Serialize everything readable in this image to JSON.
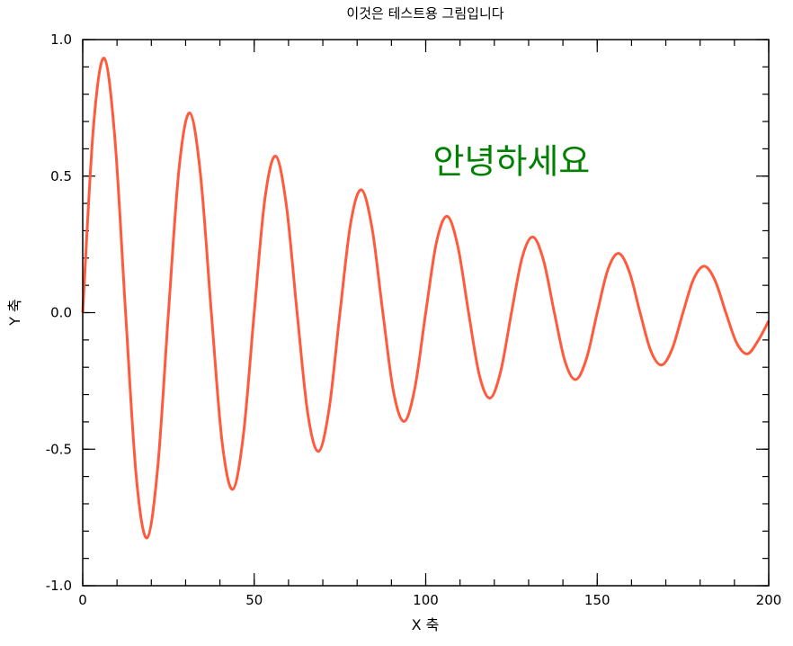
{
  "chart_data": {
    "type": "line",
    "title": "이것은 테스트용 그림입니다",
    "xlabel": "X 축",
    "ylabel": "Y 축",
    "xlim": [
      0,
      200
    ],
    "ylim": [
      -1.0,
      1.0
    ],
    "xticks": [
      0,
      50,
      100,
      150,
      200
    ],
    "xtick_labels": [
      "0",
      "50",
      "100",
      "150",
      "200"
    ],
    "yticks": [
      -1.0,
      -0.5,
      0.0,
      0.5,
      1.0
    ],
    "ytick_labels": [
      "-1.0",
      "-0.5",
      "0.0",
      "0.5",
      "1.0"
    ],
    "x_minor_step": 10,
    "y_minor_step": 0.1,
    "grid": false,
    "annotation": {
      "text": "안녕하세요",
      "x": 125,
      "y": 0.55,
      "color": "#008000"
    },
    "series": [
      {
        "color": "#ff5a3c",
        "x": [
          0,
          3.125,
          6.25,
          9.375,
          12.5,
          15.625,
          18.75,
          21.875,
          25,
          28.125,
          31.25,
          34.375,
          37.5,
          40.625,
          43.75,
          46.875,
          50,
          53.125,
          56.25,
          59.375,
          62.5,
          65.625,
          68.75,
          71.875,
          75,
          78.125,
          81.25,
          84.375,
          87.5,
          90.625,
          93.75,
          96.875,
          100,
          103.125,
          106.25,
          109.375,
          112.5,
          115.625,
          118.75,
          121.875,
          125,
          128.125,
          131.25,
          134.375,
          137.5,
          140.625,
          143.75,
          146.875,
          150,
          153.125,
          156.25,
          159.375,
          162.5,
          165.625,
          168.75,
          171.875,
          175,
          178.125,
          181.25,
          184.375,
          187.5,
          190.625,
          193.75,
          196.875,
          200
        ],
        "y": [
          0,
          0.679,
          0.932,
          0.639,
          0,
          -0.602,
          -0.825,
          -0.566,
          0,
          0.533,
          0.731,
          0.501,
          0,
          -0.472,
          -0.647,
          -0.444,
          0,
          0.418,
          0.573,
          0.393,
          0,
          -0.37,
          -0.508,
          -0.349,
          0,
          0.328,
          0.45,
          0.308,
          0,
          -0.291,
          -0.398,
          -0.273,
          0,
          0.257,
          0.353,
          0.242,
          0,
          -0.228,
          -0.313,
          -0.214,
          0,
          0.202,
          0.277,
          0.19,
          0,
          -0.179,
          -0.245,
          -0.168,
          0,
          0.158,
          0.217,
          0.149,
          0,
          -0.14,
          -0.192,
          -0.132,
          0,
          0.124,
          0.17,
          0.117,
          0,
          -0.11,
          -0.151,
          -0.103,
          -0.03
        ]
      }
    ]
  }
}
